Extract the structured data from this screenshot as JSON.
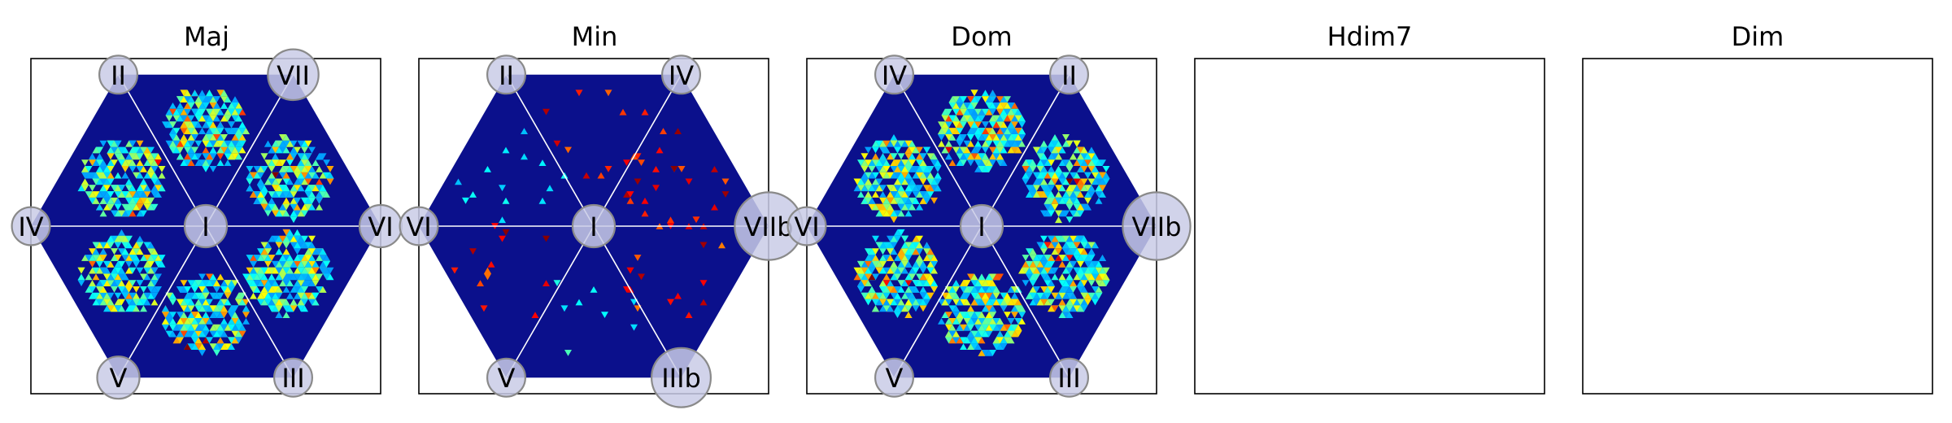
{
  "figure": {
    "colormap": "jet",
    "hexagon_fill": "#0b108c",
    "guide_line_color": "#ffffff",
    "node_fill": "#c9cbe6",
    "node_stroke": "#8a8a8a"
  },
  "chart_data": [
    {
      "type": "heatmap",
      "title": "Maj",
      "node_labels": {
        "top_left": "II",
        "top_right": "VII",
        "left": "IV",
        "center": "I",
        "right": "VI",
        "bottom_left": "V",
        "bottom_right": "III"
      },
      "node_weights": {
        "top_left": 0.9,
        "top_right": 1.2,
        "left": 0.9,
        "center": 1.0,
        "right": 1.0,
        "bottom_left": 1.0,
        "bottom_right": 0.9
      },
      "clusters": [
        {
          "sector": 0,
          "radius": 0.55,
          "intensity": 0.85,
          "count": 260
        },
        {
          "sector": 1,
          "radius": 0.55,
          "intensity": 1.0,
          "count": 320
        },
        {
          "sector": 2,
          "radius": 0.55,
          "intensity": 0.8,
          "count": 260
        },
        {
          "sector": 3,
          "radius": 0.55,
          "intensity": 0.75,
          "count": 240
        },
        {
          "sector": 4,
          "radius": 0.5,
          "intensity": 0.9,
          "count": 280
        },
        {
          "sector": 5,
          "radius": 0.55,
          "intensity": 0.9,
          "count": 300
        }
      ],
      "sparse": false
    },
    {
      "type": "heatmap",
      "title": "Min",
      "node_labels": {
        "top_left": "II",
        "top_right": "IV",
        "left": "VI",
        "center": "I",
        "right": "VIIb",
        "bottom_left": "V",
        "bottom_right": "IIIb"
      },
      "node_weights": {
        "top_left": 0.9,
        "top_right": 0.9,
        "left": 0.9,
        "center": 1.0,
        "right": 1.6,
        "bottom_left": 0.9,
        "bottom_right": 1.4
      },
      "clusters": [
        {
          "sector": 0,
          "radius": 0.55,
          "intensity": 1.0,
          "count": 28
        },
        {
          "sector": 1,
          "radius": 0.55,
          "intensity": 1.0,
          "count": 10
        },
        {
          "sector": 2,
          "radius": 0.55,
          "intensity": 0.4,
          "count": 14
        },
        {
          "sector": 3,
          "radius": 0.55,
          "intensity": 1.0,
          "count": 14
        },
        {
          "sector": 4,
          "radius": 0.5,
          "intensity": 0.45,
          "count": 8
        },
        {
          "sector": 5,
          "radius": 0.55,
          "intensity": 1.0,
          "count": 18
        }
      ],
      "sparse": true
    },
    {
      "type": "heatmap",
      "title": "Dom",
      "node_labels": {
        "top_left": "IV",
        "top_right": "II",
        "left": "VI",
        "center": "I",
        "right": "VIIb",
        "bottom_left": "V",
        "bottom_right": "III"
      },
      "node_weights": {
        "top_left": 0.9,
        "top_right": 0.9,
        "left": 0.9,
        "center": 1.0,
        "right": 1.6,
        "bottom_left": 0.9,
        "bottom_right": 0.9
      },
      "clusters": [
        {
          "sector": 0,
          "radius": 0.55,
          "intensity": 0.9,
          "count": 300
        },
        {
          "sector": 1,
          "radius": 0.55,
          "intensity": 1.0,
          "count": 330
        },
        {
          "sector": 2,
          "radius": 0.55,
          "intensity": 0.85,
          "count": 290
        },
        {
          "sector": 3,
          "radius": 0.55,
          "intensity": 0.9,
          "count": 300
        },
        {
          "sector": 4,
          "radius": 0.5,
          "intensity": 0.95,
          "count": 320
        },
        {
          "sector": 5,
          "radius": 0.55,
          "intensity": 0.85,
          "count": 290
        }
      ],
      "sparse": false
    },
    {
      "type": "heatmap",
      "title": "Hdim7",
      "empty": true
    },
    {
      "type": "heatmap",
      "title": "Dim",
      "empty": true
    }
  ]
}
